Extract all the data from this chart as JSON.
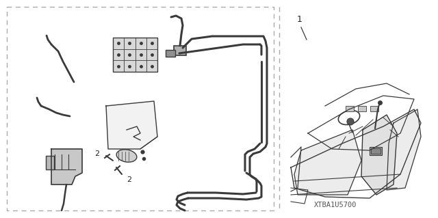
{
  "bg_color": "#ffffff",
  "line_color": "#3a3a3a",
  "dash_color": "#aaaaaa",
  "text_color": "#222222",
  "watermark": "XTBA1U5700",
  "label_1": "1",
  "label_2": "2"
}
